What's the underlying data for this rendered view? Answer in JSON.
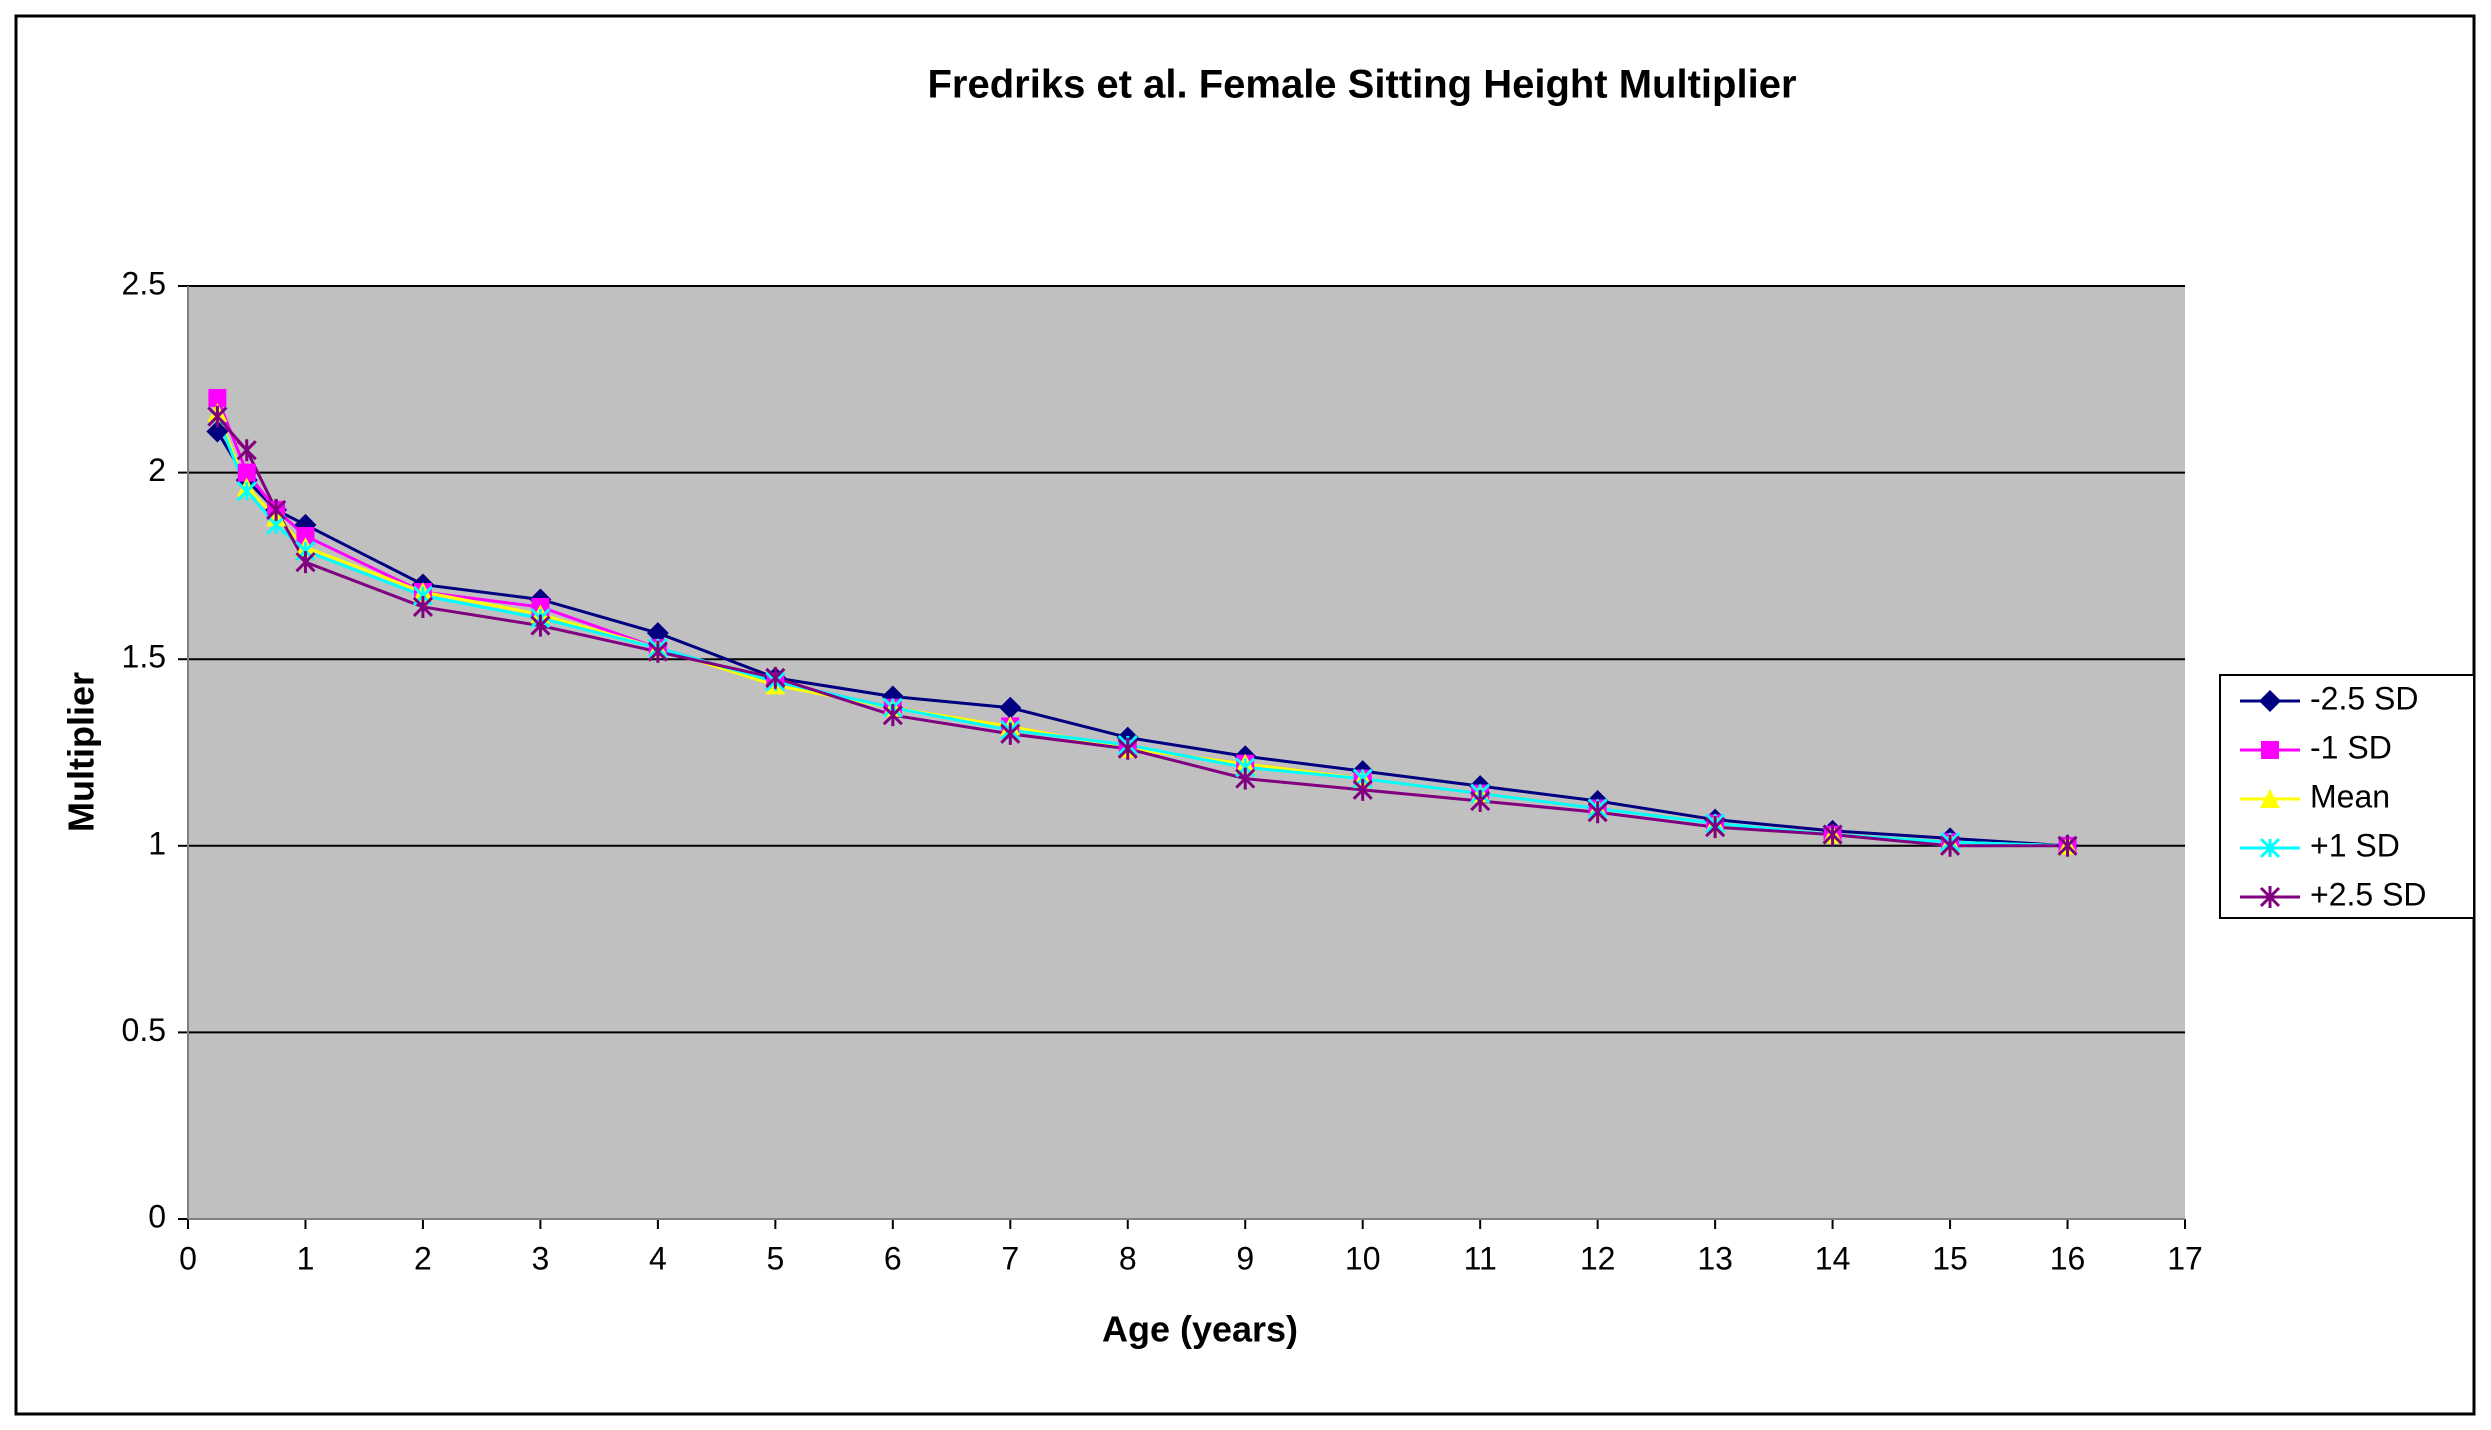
{
  "chart_data": {
    "type": "line",
    "title": "Fredriks et al. Female Sitting Height Multiplier",
    "x_label": "Age (years)",
    "y_label": "Multiplier",
    "x": [
      0.25,
      0.5,
      0.75,
      1,
      2,
      3,
      4,
      5,
      6,
      7,
      8,
      9,
      10,
      11,
      12,
      13,
      14,
      15,
      16
    ],
    "series": [
      {
        "name": "-2.5 SD",
        "color": "#000080",
        "marker": "diamond",
        "values": [
          2.11,
          1.98,
          1.9,
          1.86,
          1.7,
          1.66,
          1.57,
          1.45,
          1.4,
          1.37,
          1.29,
          1.24,
          1.2,
          1.16,
          1.12,
          1.07,
          1.04,
          1.02,
          1.0
        ]
      },
      {
        "name": "-1 SD",
        "color": "#ff00ff",
        "marker": "square",
        "values": [
          2.2,
          2.0,
          1.9,
          1.83,
          1.68,
          1.64,
          1.53,
          1.44,
          1.37,
          1.32,
          1.26,
          1.22,
          1.18,
          1.14,
          1.1,
          1.06,
          1.03,
          1.01,
          1.0
        ]
      },
      {
        "name": "Mean",
        "color": "#ffff00",
        "marker": "triangle",
        "values": [
          2.16,
          1.96,
          1.88,
          1.8,
          1.68,
          1.62,
          1.53,
          1.43,
          1.37,
          1.32,
          1.26,
          1.22,
          1.18,
          1.14,
          1.1,
          1.06,
          1.03,
          1.01,
          1.0
        ]
      },
      {
        "name": "+1 SD",
        "color": "#00ffff",
        "marker": "cross",
        "values": [
          2.15,
          1.95,
          1.86,
          1.79,
          1.67,
          1.61,
          1.53,
          1.44,
          1.37,
          1.31,
          1.27,
          1.21,
          1.18,
          1.14,
          1.1,
          1.06,
          1.03,
          1.01,
          1.0
        ]
      },
      {
        "name": "+2.5 SD",
        "color": "#800080",
        "marker": "star",
        "values": [
          2.15,
          2.06,
          1.9,
          1.76,
          1.64,
          1.59,
          1.52,
          1.45,
          1.35,
          1.3,
          1.26,
          1.18,
          1.15,
          1.12,
          1.09,
          1.05,
          1.03,
          1.0,
          1.0
        ]
      }
    ],
    "xlim": [
      0,
      17
    ],
    "xticks": [
      0,
      1,
      2,
      3,
      4,
      5,
      6,
      7,
      8,
      9,
      10,
      11,
      12,
      13,
      14,
      15,
      16,
      17
    ],
    "ylim": [
      0,
      2.5
    ],
    "yticks": [
      0,
      0.5,
      1,
      1.5,
      2,
      2.5
    ],
    "grid": true,
    "plot_background": "#c0c0c0",
    "legend": "right"
  }
}
